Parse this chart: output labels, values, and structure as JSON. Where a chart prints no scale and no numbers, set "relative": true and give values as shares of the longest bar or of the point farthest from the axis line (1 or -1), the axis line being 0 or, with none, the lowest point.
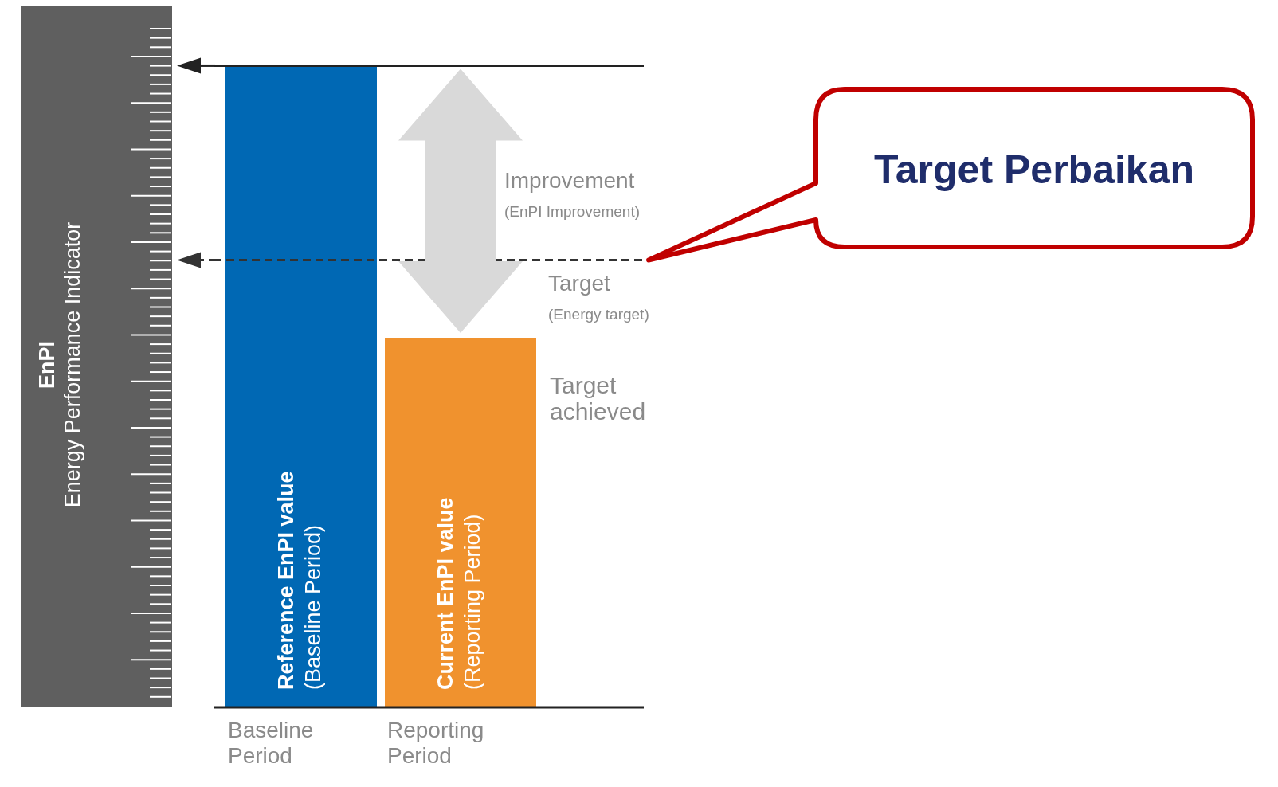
{
  "chart_data": {
    "type": "bar",
    "relative": true,
    "categories": [
      "Baseline Period",
      "Reporting Period"
    ],
    "values": [
      1,
      0.576
    ],
    "colors": [
      "#0068b4",
      "#f0922e"
    ],
    "ref_lines": [
      {
        "axis": "y",
        "value": 1,
        "color": "#222222",
        "line_style": "solid"
      },
      {
        "axis": "y",
        "value": 0.697,
        "label": "Target",
        "color": "#333333",
        "line_style": "dashed"
      }
    ],
    "annotations": [
      "Reference EnPI value\n(Baseline Period)",
      "Current EnPI value\n(Reporting Period)",
      "Improvement",
      "(EnPI Improvement)",
      "Target\nachieved",
      "Target Perbaikan",
      "EnPI\nEnergy Performance Indicator",
      "(Energy target)"
    ]
  }
}
